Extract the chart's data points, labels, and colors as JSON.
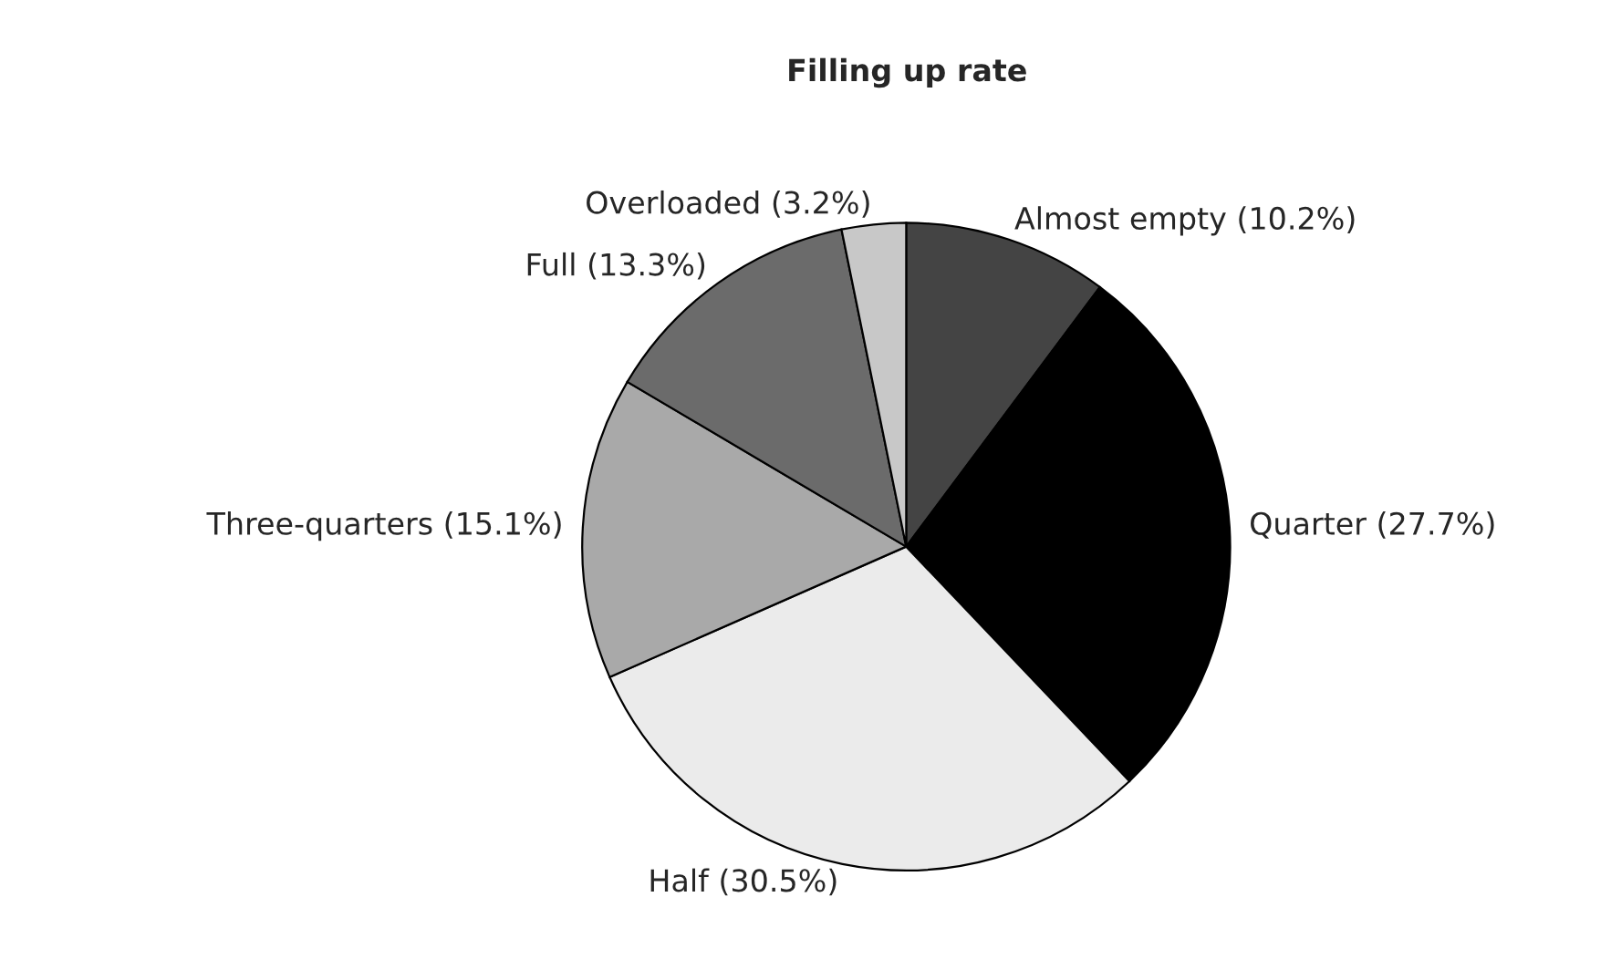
{
  "chart_data": {
    "type": "pie",
    "title": "Filling up rate",
    "categories": [
      "Almost empty (10.2%)",
      "Quarter (27.7%)",
      "Half (30.5%)",
      "Three-quarters (15.1%)",
      "Full (13.3%)",
      "Overloaded (3.2%)"
    ],
    "values": [
      10.2,
      27.7,
      30.5,
      15.1,
      13.3,
      3.2
    ],
    "colors": [
      "#444444",
      "#000000",
      "#ebebeb",
      "#a9a9a9",
      "#6b6b6b",
      "#c8c8c8"
    ],
    "legend": false
  }
}
